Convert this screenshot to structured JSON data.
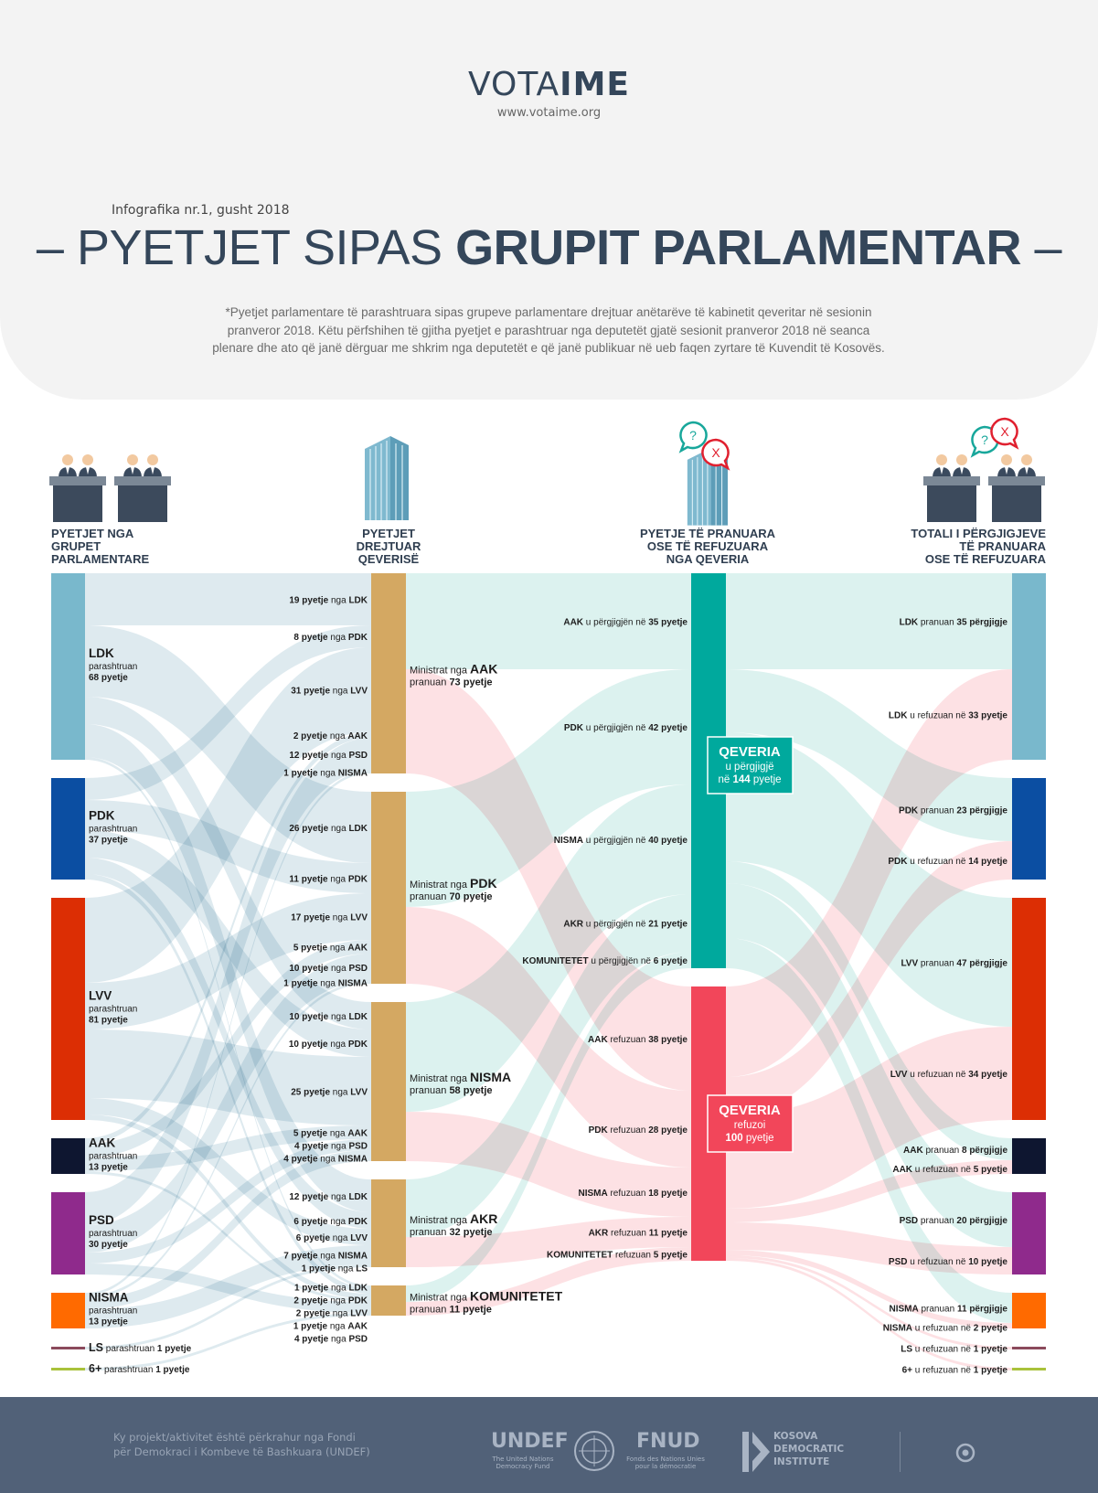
{
  "header": {
    "logo_light": "VOTA",
    "logo_bold": "IME",
    "url": "www.votaime.org",
    "infographic": "Infografika nr.1, gusht 2018",
    "title_dash_left": "– ",
    "title_light": "PYETJET SIPAS ",
    "title_bold": "GRUPIT PARLAMENTAR",
    "title_dash_right": " –",
    "note_lines": [
      "*Pyetjet parlamentare të parashtruara sipas grupeve parlamentare drejtuar anëtarëve të kabinetit qeveritar në sesionin",
      "pranveror 2018. Këtu përfshihen të gjitha pyetjet e parashtruar nga deputetët gjatë sesionit pranveror 2018 në seanca",
      "plenare dhe ato që janë dërguar me shkrim nga deputetët e që janë publikuar në ueb faqen zyrtare të Kuvendit të Kosovës."
    ]
  },
  "columns": [
    {
      "lines": [
        "PYETJET NGA",
        "GRUPET",
        "PARLAMENTARE"
      ]
    },
    {
      "lines": [
        "PYETJET",
        "DREJTUAR",
        "QEVERISË"
      ]
    },
    {
      "lines": [
        "PYETJE TË PRANUARA",
        "OSE TË REFUZUARA",
        "NGA QEVERIA"
      ]
    },
    {
      "lines": [
        "TOTALI I PËRGJIGJEVE",
        "TË PRANUARA",
        "OSE TË REFUZUARA"
      ]
    }
  ],
  "words": {
    "pyetje": "pyetje",
    "nga": "nga",
    "parashtruan": "parashtruan",
    "pranuan": "pranuan",
    "pergjigje": "përgjigje",
    "u_pergjigjen_ne": "u përgjigjën në",
    "refuzuan": "refuzuan",
    "u_refuzuan_ne": "u refuzuan në",
    "ministrat_nga": "Ministrat nga"
  },
  "left_nodes": [
    {
      "name": "LDK",
      "value": 68,
      "count": "68 pyetje",
      "color": "#79b8cc"
    },
    {
      "name": "PDK",
      "value": 37,
      "count": "37 pyetje",
      "color": "#0b4ea2"
    },
    {
      "name": "LVV",
      "value": 81,
      "count": "81 pyetje",
      "color": "#dc2e04"
    },
    {
      "name": "AAK",
      "value": 13,
      "count": "13 pyetje",
      "color": "#0e1630"
    },
    {
      "name": "PSD",
      "value": 30,
      "count": "30 pyetje",
      "color": "#8f2a8c"
    },
    {
      "name": "NISMA",
      "value": 13,
      "count": "13 pyetje",
      "color": "#ff6a00"
    },
    {
      "name": "LS",
      "value": 1,
      "count": "1 pyetje",
      "color": "#8b4a5c",
      "line": true
    },
    {
      "name": "6+",
      "value": 1,
      "count": "1 pyetje",
      "color": "#a9c23b",
      "line": true
    }
  ],
  "gov_nodes": [
    {
      "name": "AAK",
      "value": 73,
      "count": "73 pyetje"
    },
    {
      "name": "PDK",
      "value": 70,
      "count": "70 pyetje"
    },
    {
      "name": "NISMA",
      "value": 58,
      "count": "58 pyetje"
    },
    {
      "name": "AKR",
      "value": 32,
      "count": "32 pyetje"
    },
    {
      "name": "KOMUNITETET",
      "value": 11,
      "count": "11 pyetje"
    }
  ],
  "gov_color": "#d4a862",
  "qeveria": [
    {
      "title": "QEVERIA",
      "line1": "u përgjigjë",
      "line2_pre": "në ",
      "line2_bold": "144",
      "line2_post": " pyetje",
      "value": 144,
      "color": "#00a99d"
    },
    {
      "title": "QEVERIA",
      "line1": "refuzoi",
      "line2_pre": "",
      "line2_bold": "100",
      "line2_post": " pyetje",
      "value": 100,
      "color": "#f2465a"
    }
  ],
  "links_left_gov": [
    [
      "LDK",
      "AAK",
      19
    ],
    [
      "PDK",
      "AAK",
      8
    ],
    [
      "LVV",
      "AAK",
      31
    ],
    [
      "AAK",
      "AAK",
      2
    ],
    [
      "PSD",
      "AAK",
      12
    ],
    [
      "NISMA",
      "AAK",
      1
    ],
    [
      "LDK",
      "PDK",
      26
    ],
    [
      "PDK",
      "PDK",
      11
    ],
    [
      "LVV",
      "PDK",
      17
    ],
    [
      "AAK",
      "PDK",
      5
    ],
    [
      "PSD",
      "PDK",
      10
    ],
    [
      "NISMA",
      "PDK",
      1
    ],
    [
      "LDK",
      "NISMA",
      10
    ],
    [
      "PDK",
      "NISMA",
      10
    ],
    [
      "LVV",
      "NISMA",
      25
    ],
    [
      "AAK",
      "NISMA",
      5
    ],
    [
      "PSD",
      "NISMA",
      4
    ],
    [
      "NISMA",
      "NISMA",
      4
    ],
    [
      "LDK",
      "AKR",
      12
    ],
    [
      "PDK",
      "AKR",
      6
    ],
    [
      "LVV",
      "AKR",
      6
    ],
    [
      "NISMA",
      "AKR",
      7
    ],
    [
      "LS",
      "AKR",
      1
    ],
    [
      "LDK",
      "KOMUNITETET",
      1
    ],
    [
      "PDK",
      "KOMUNITETET",
      2
    ],
    [
      "LVV",
      "KOMUNITETET",
      2
    ],
    [
      "AAK",
      "KOMUNITETET",
      1
    ],
    [
      "PSD",
      "KOMUNITETET",
      4
    ],
    [
      "6+",
      "KOMUNITETET",
      1,
      "nolabel"
    ]
  ],
  "links_gov_q": [
    [
      "AAK",
      0,
      35
    ],
    [
      "PDK",
      0,
      42
    ],
    [
      "NISMA",
      0,
      40
    ],
    [
      "AKR",
      0,
      21
    ],
    [
      "KOMUNITETET",
      0,
      6
    ],
    [
      "AAK",
      1,
      38
    ],
    [
      "PDK",
      1,
      28
    ],
    [
      "NISMA",
      1,
      18
    ],
    [
      "AKR",
      1,
      11
    ],
    [
      "KOMUNITETET",
      1,
      5
    ]
  ],
  "links_q_right": [
    [
      0,
      "LDK",
      35
    ],
    [
      0,
      "PDK",
      23
    ],
    [
      0,
      "LVV",
      47
    ],
    [
      0,
      "AAK",
      8
    ],
    [
      0,
      "PSD",
      20
    ],
    [
      0,
      "NISMA",
      11
    ],
    [
      1,
      "LDK",
      33
    ],
    [
      1,
      "PDK",
      14
    ],
    [
      1,
      "LVV",
      34
    ],
    [
      1,
      "AAK",
      5
    ],
    [
      1,
      "PSD",
      10
    ],
    [
      1,
      "NISMA",
      2
    ],
    [
      1,
      "LS",
      1
    ],
    [
      1,
      "6+",
      1
    ]
  ],
  "flow_colors": {
    "left": "#c3d8e2",
    "accepted": "#bfe7e2",
    "refused": "#fbc9ce"
  },
  "footer": {
    "text_lines": [
      "Ky projekt/aktivitet është përkrahur nga Fondi",
      "për Demokraci i Kombeve të Bashkuara (UNDEF)"
    ],
    "undef": "UNDEF",
    "undef_sub": [
      "The United Nations",
      "Democracy Fund"
    ],
    "fnud": "FNUD",
    "fnud_sub": [
      "Fonds des Nations Unies",
      "pour la démocratie"
    ],
    "kdi": [
      "KOSOVA",
      "DEMOCRATIC",
      "INSTITUTE"
    ]
  }
}
